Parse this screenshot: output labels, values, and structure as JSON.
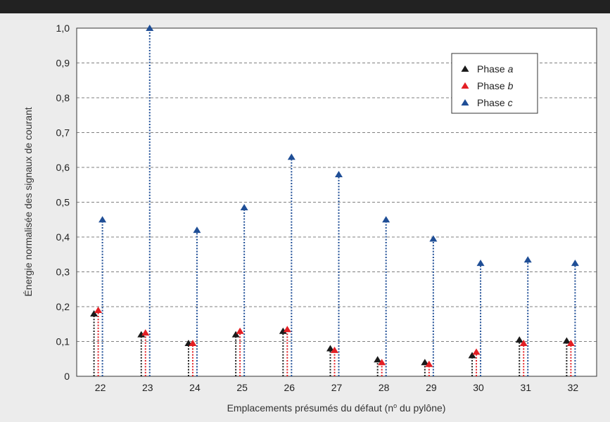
{
  "chart_data": {
    "type": "scatter",
    "title": "",
    "xlabel": "Emplacements présumés du défaut (n",
    "xlabel_sup": "o",
    "xlabel_end": " du pylône)",
    "ylabel": "Énergie normalisée des signaux de courant",
    "categories": [
      "22",
      "23",
      "24",
      "25",
      "26",
      "27",
      "28",
      "29",
      "30",
      "31",
      "32"
    ],
    "yticks": [
      "0",
      "0,1",
      "0,2",
      "0,3",
      "0,4",
      "0,5",
      "0,6",
      "0,7",
      "0,8",
      "0,9",
      "1,0"
    ],
    "ylim": [
      0,
      1.0
    ],
    "grid": "horizontal dashed",
    "legend_position": "top-right",
    "series": [
      {
        "name": "Phase ",
        "name_italic": "a",
        "color": "#1a1a1a",
        "values": [
          0.18,
          0.12,
          0.095,
          0.12,
          0.13,
          0.08,
          0.048,
          0.04,
          0.06,
          0.105,
          0.102
        ]
      },
      {
        "name": "Phase ",
        "name_italic": "b",
        "color": "#e31e24",
        "values": [
          0.19,
          0.125,
          0.095,
          0.13,
          0.135,
          0.075,
          0.04,
          0.035,
          0.07,
          0.095,
          0.095
        ]
      },
      {
        "name": "Phase ",
        "name_italic": "c",
        "color": "#1f4e96",
        "values": [
          0.45,
          1.0,
          0.42,
          0.485,
          0.63,
          0.58,
          0.45,
          0.395,
          0.325,
          0.335,
          0.325
        ]
      }
    ]
  }
}
